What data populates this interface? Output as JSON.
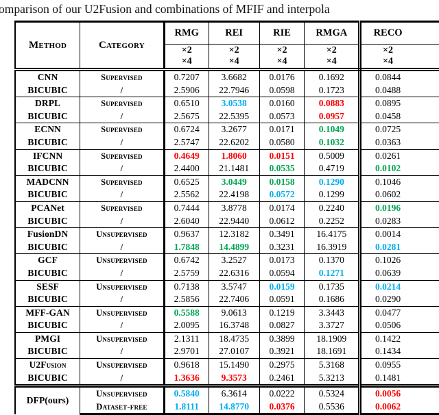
{
  "title": "omparison of our U2Fusion and combinations of MFIF and interpola",
  "colors": {
    "k": "#000000",
    "r": "#fe0000",
    "g": "#00a651",
    "b": "#00aeef"
  },
  "header": {
    "method": "Method",
    "category": "Category",
    "metrics": [
      "RMG",
      "REI",
      "RIE",
      "RMGA",
      "RECO"
    ],
    "scale_x2": "×2",
    "scale_x4": "×4"
  },
  "rows": [
    {
      "method": "CNN",
      "method2": "BICUBIC",
      "category": "Supervised",
      "category2": "/",
      "x2": [
        [
          "0.7207",
          "k"
        ],
        [
          "3.6682",
          "k"
        ],
        [
          "0.0176",
          "k"
        ],
        [
          "0.1692",
          "k"
        ],
        [
          "0.0844",
          "k"
        ]
      ],
      "x4": [
        [
          "2.5906",
          "k"
        ],
        [
          "22.7946",
          "k"
        ],
        [
          "0.0598",
          "k"
        ],
        [
          "0.1723",
          "k"
        ],
        [
          "0.0488",
          "k"
        ]
      ]
    },
    {
      "method": "DRPL",
      "method2": "BICUBIC",
      "category": "Supervised",
      "category2": "/",
      "x2": [
        [
          "0.6510",
          "k"
        ],
        [
          "3.0538",
          "b"
        ],
        [
          "0.0160",
          "k"
        ],
        [
          "0.0883",
          "r"
        ],
        [
          "0.0895",
          "k"
        ]
      ],
      "x4": [
        [
          "2.5675",
          "k"
        ],
        [
          "22.5395",
          "k"
        ],
        [
          "0.0573",
          "k"
        ],
        [
          "0.0957",
          "r"
        ],
        [
          "0.0458",
          "k"
        ]
      ]
    },
    {
      "method": "ECNN",
      "method2": "BICUBIC",
      "category": "Supervised",
      "category2": "/",
      "x2": [
        [
          "0.6724",
          "k"
        ],
        [
          "3.2677",
          "k"
        ],
        [
          "0.0171",
          "k"
        ],
        [
          "0.1049",
          "g"
        ],
        [
          "0.0725",
          "k"
        ]
      ],
      "x4": [
        [
          "2.5747",
          "k"
        ],
        [
          "22.6202",
          "k"
        ],
        [
          "0.0580",
          "k"
        ],
        [
          "0.1032",
          "g"
        ],
        [
          "0.0363",
          "k"
        ]
      ]
    },
    {
      "method": "IFCNN",
      "method2": "BICUBIC",
      "category": "Supervised",
      "category2": "/",
      "x2": [
        [
          "0.4649",
          "r"
        ],
        [
          "1.8060",
          "r"
        ],
        [
          "0.0151",
          "r"
        ],
        [
          "0.5009",
          "k"
        ],
        [
          "0.0261",
          "k"
        ]
      ],
      "x4": [
        [
          "2.4400",
          "k"
        ],
        [
          "21.1481",
          "k"
        ],
        [
          "0.0535",
          "g"
        ],
        [
          "0.4719",
          "k"
        ],
        [
          "0.0102",
          "g"
        ]
      ]
    },
    {
      "method": "MADCNN",
      "method2": "BICUBIC",
      "category": "Supervised",
      "category2": "/",
      "x2": [
        [
          "0.6525",
          "k"
        ],
        [
          "3.0449",
          "g"
        ],
        [
          "0.0158",
          "g"
        ],
        [
          "0.1290",
          "b"
        ],
        [
          "0.1046",
          "k"
        ]
      ],
      "x4": [
        [
          "2.5562",
          "k"
        ],
        [
          "22.4198",
          "k"
        ],
        [
          "0.0572",
          "b"
        ],
        [
          "0.1299",
          "k"
        ],
        [
          "0.0602",
          "k"
        ]
      ]
    },
    {
      "method": "PCANet",
      "method2": "BICUBIC",
      "category": "Supervised",
      "category2": "/",
      "x2": [
        [
          "0.7444",
          "k"
        ],
        [
          "3.8778",
          "k"
        ],
        [
          "0.0174",
          "k"
        ],
        [
          "0.2240",
          "k"
        ],
        [
          "0.0196",
          "g"
        ]
      ],
      "x4": [
        [
          "2.6040",
          "k"
        ],
        [
          "22.9440",
          "k"
        ],
        [
          "0.0612",
          "k"
        ],
        [
          "0.2252",
          "k"
        ],
        [
          "0.0283",
          "k"
        ]
      ]
    },
    {
      "method": "FusionDN",
      "method2": "BICUBIC",
      "category": "Unsupervised",
      "category2": "/",
      "x2": [
        [
          "0.9637",
          "k"
        ],
        [
          "12.3182",
          "k"
        ],
        [
          "0.3491",
          "k"
        ],
        [
          "16.4175",
          "k"
        ],
        [
          "0.0014",
          "k"
        ]
      ],
      "x4": [
        [
          "1.7848",
          "g"
        ],
        [
          "14.4899",
          "g"
        ],
        [
          "0.3231",
          "k"
        ],
        [
          "16.3919",
          "k"
        ],
        [
          "0.0281",
          "b"
        ]
      ]
    },
    {
      "method": "GCF",
      "method2": "BICUBIC",
      "category": "Unsupervised",
      "category2": "/",
      "x2": [
        [
          "0.6742",
          "k"
        ],
        [
          "3.2527",
          "k"
        ],
        [
          "0.0173",
          "k"
        ],
        [
          "0.1370",
          "k"
        ],
        [
          "0.1026",
          "k"
        ]
      ],
      "x4": [
        [
          "2.5759",
          "k"
        ],
        [
          "22.6316",
          "k"
        ],
        [
          "0.0594",
          "k"
        ],
        [
          "0.1271",
          "b"
        ],
        [
          "0.0639",
          "k"
        ]
      ]
    },
    {
      "method": "SESF",
      "method2": "BICUBIC",
      "category": "Unsupervised",
      "category2": "/",
      "x2": [
        [
          "0.7138",
          "k"
        ],
        [
          "3.5747",
          "k"
        ],
        [
          "0.0159",
          "b"
        ],
        [
          "0.1735",
          "k"
        ],
        [
          "0.0214",
          "b"
        ]
      ],
      "x4": [
        [
          "2.5856",
          "k"
        ],
        [
          "22.7406",
          "k"
        ],
        [
          "0.0591",
          "k"
        ],
        [
          "0.1686",
          "k"
        ],
        [
          "0.0290",
          "k"
        ]
      ]
    },
    {
      "method": "MFF-GAN",
      "method2": "BICUBIC",
      "category": "Unsupervised",
      "category2": "/",
      "x2": [
        [
          "0.5588",
          "g"
        ],
        [
          "9.0613",
          "k"
        ],
        [
          "0.1219",
          "k"
        ],
        [
          "3.3443",
          "k"
        ],
        [
          "0.0477",
          "k"
        ]
      ],
      "x4": [
        [
          "2.0095",
          "k"
        ],
        [
          "16.3748",
          "k"
        ],
        [
          "0.0827",
          "k"
        ],
        [
          "3.3727",
          "k"
        ],
        [
          "0.0506",
          "k"
        ]
      ]
    },
    {
      "method": "PMGI",
      "method2": "BICUBIC",
      "category": "Unsupervised",
      "category2": "/",
      "x2": [
        [
          "2.1311",
          "k"
        ],
        [
          "18.4735",
          "k"
        ],
        [
          "0.3899",
          "k"
        ],
        [
          "18.1909",
          "k"
        ],
        [
          "0.1422",
          "k"
        ]
      ],
      "x4": [
        [
          "2.9701",
          "k"
        ],
        [
          "27.0107",
          "k"
        ],
        [
          "0.3921",
          "k"
        ],
        [
          "18.1691",
          "k"
        ],
        [
          "0.1434",
          "k"
        ]
      ]
    },
    {
      "method": "U2Fusion",
      "method_sc": true,
      "method2": "BICUBIC",
      "category": "Unsupervised",
      "category2": "/",
      "x2": [
        [
          "0.9618",
          "k"
        ],
        [
          "15.1490",
          "k"
        ],
        [
          "0.2975",
          "k"
        ],
        [
          "5.3168",
          "k"
        ],
        [
          "0.0955",
          "k"
        ]
      ],
      "x4": [
        [
          "1.3636",
          "r"
        ],
        [
          "9.3573",
          "r"
        ],
        [
          "0.2461",
          "k"
        ],
        [
          "5.3213",
          "k"
        ],
        [
          "0.1481",
          "k"
        ]
      ]
    },
    {
      "method": "DFP(ours)",
      "method_span": true,
      "final": true,
      "category": "Unsupervised",
      "category2": "Dataset-free",
      "x2": [
        [
          "0.5840",
          "b"
        ],
        [
          "6.3614",
          "k"
        ],
        [
          "0.0222",
          "k"
        ],
        [
          "0.5324",
          "k"
        ],
        [
          "0.0056",
          "r"
        ]
      ],
      "x4": [
        [
          "1.8111",
          "b"
        ],
        [
          "14.8770",
          "b"
        ],
        [
          "0.0376",
          "r"
        ],
        [
          "0.5536",
          "k"
        ],
        [
          "0.0062",
          "r"
        ]
      ]
    }
  ]
}
